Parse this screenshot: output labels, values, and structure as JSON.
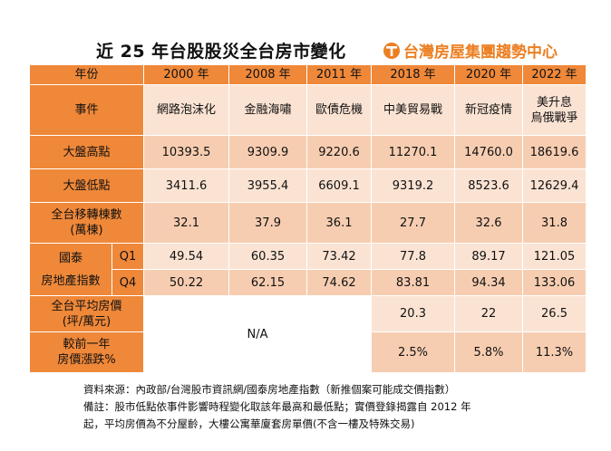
{
  "title": "近 25 年台股股災全台房市變化",
  "brand": "台灣房屋集團趨勢中心",
  "header": {
    "corner": "年份",
    "years": [
      "2000 年",
      "2008 年",
      "2011 年",
      "2018 年",
      "2020 年",
      "2022 年"
    ]
  },
  "rows": {
    "event": {
      "label": "事件",
      "values": [
        "網路泡沫化",
        "金融海嘯",
        "歐債危機",
        "中美貿易戰",
        "新冠疫情"
      ],
      "last_line1": "美升息",
      "last_line2": "烏俄戰爭"
    },
    "high": {
      "label": "大盤高點",
      "values": [
        "10393.5",
        "9309.9",
        "9220.6",
        "11270.1",
        "14760.0",
        "18619.6"
      ]
    },
    "low": {
      "label": "大盤低點",
      "values": [
        "3411.6",
        "3955.4",
        "6609.1",
        "9319.2",
        "8523.6",
        "12629.4"
      ]
    },
    "transfer": {
      "label_line1": "全台移轉棟數",
      "label_line2": "(萬棟)",
      "values": [
        "32.1",
        "37.9",
        "36.1",
        "27.7",
        "32.6",
        "31.8"
      ]
    },
    "cathay": {
      "label_line1": "國泰",
      "label_line2": "房地產指數",
      "q1_label": "Q1",
      "q4_label": "Q4",
      "q1": [
        "49.54",
        "60.35",
        "73.42",
        "77.8",
        "89.17",
        "121.05"
      ],
      "q4": [
        "50.22",
        "62.15",
        "74.62",
        "83.81",
        "94.34",
        "133.06"
      ]
    },
    "avg_price": {
      "label_line1": "全台平均房價",
      "label_line2": "(坪/萬元)",
      "values": [
        "20.3",
        "22",
        "26.5"
      ]
    },
    "growth": {
      "label_line1": "較前一年",
      "label_line2": "房價漲跌%",
      "values": [
        "2.5%",
        "5.8%",
        "11.3%"
      ]
    },
    "na": "N/A"
  },
  "notes": {
    "line1": "資料來源：內政部/台灣股市資訊網/國泰房地產指數（新推個案可能成交價指數）",
    "line2": "備註：股市低點依事件影響時程變化取該年最高和最低點；實價登錄揭露自 2012 年",
    "line3": "起，平均房價為不分屋齡，大樓公寓華廈套房單價(不含一樓及特殊交易)"
  },
  "colors": {
    "orange": "#ef8839",
    "light": "#fbe3d3",
    "dark": "#f7cdb1",
    "brand": "#ec7f22"
  }
}
